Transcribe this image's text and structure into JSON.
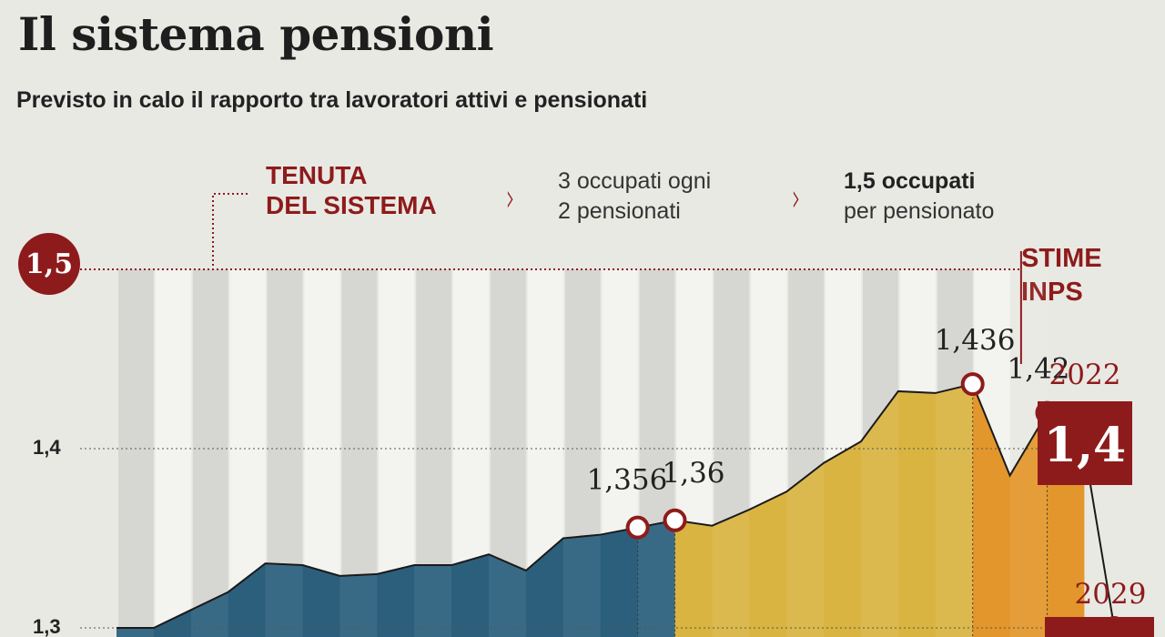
{
  "title": "Il sistema pensioni",
  "subtitle": "Previsto in calo il rapporto tra lavoratori attivi e pensionati",
  "legend": {
    "tenuta_line1": "TENUTA",
    "tenuta_line2": "DEL SISTEMA",
    "step1_line1": "3 occupati ogni",
    "step1_line2": "2 pensionati",
    "step2_line1": "1,5 occupati",
    "step2_line2": "per pensionato",
    "chevron": "›"
  },
  "stime": {
    "line1": "STIME",
    "line2": "INPS"
  },
  "colors": {
    "background": "#e9e9e4",
    "stripe": "#d3d3cf",
    "stripe_light": "#f3f3f0",
    "accent_red": "#8e1b1b",
    "teal": "#2b5f7c",
    "gold": "#d9b441",
    "orange": "#e3962b"
  },
  "chart_data": {
    "type": "area",
    "ylim": [
      1.3,
      1.5
    ],
    "yticks": [
      {
        "value": 1.5,
        "label": "1,5",
        "highlight": true
      },
      {
        "value": 1.4,
        "label": "1,4",
        "highlight": false
      },
      {
        "value": 1.3,
        "label": "1,3",
        "highlight": false
      }
    ],
    "series": [
      {
        "color": "#2b5f7c",
        "points": [
          [
            0,
            1.3
          ],
          [
            1,
            1.3
          ],
          [
            2,
            1.31
          ],
          [
            3,
            1.32
          ],
          [
            4,
            1.336
          ],
          [
            5,
            1.335
          ],
          [
            6,
            1.329
          ],
          [
            7,
            1.33
          ],
          [
            8,
            1.335
          ],
          [
            9,
            1.335
          ],
          [
            10,
            1.341
          ],
          [
            11,
            1.332
          ],
          [
            12,
            1.35
          ],
          [
            13,
            1.352
          ],
          [
            14,
            1.356
          ],
          [
            15,
            1.36
          ]
        ]
      },
      {
        "color": "#d9b441",
        "points": [
          [
            15,
            1.36
          ],
          [
            16,
            1.357
          ],
          [
            17,
            1.366
          ],
          [
            18,
            1.376
          ],
          [
            19,
            1.392
          ],
          [
            20,
            1.404
          ],
          [
            21,
            1.432
          ],
          [
            22,
            1.431
          ],
          [
            23,
            1.436
          ]
        ]
      },
      {
        "color": "#e3962b",
        "points": [
          [
            23,
            1.436
          ],
          [
            24,
            1.385
          ],
          [
            25,
            1.42
          ],
          [
            26,
            1.4
          ]
        ]
      }
    ],
    "forecast_line": [
      [
        26,
        1.4
      ],
      [
        27,
        1.3
      ]
    ],
    "markers": [
      {
        "x": 14,
        "y": 1.356,
        "label": "1,356"
      },
      {
        "x": 15,
        "y": 1.36,
        "label": "1,36"
      },
      {
        "x": 23,
        "y": 1.436,
        "label": "1,436"
      },
      {
        "x": 25,
        "y": 1.42,
        "label": "1,42"
      },
      {
        "x": 26,
        "y": 1.4,
        "label": ""
      },
      {
        "x": 27,
        "y": 1.3,
        "label": ""
      }
    ],
    "boxes": [
      {
        "year": "2022",
        "value": "1,4"
      },
      {
        "year": "2029",
        "value": ""
      }
    ],
    "grid": true
  }
}
